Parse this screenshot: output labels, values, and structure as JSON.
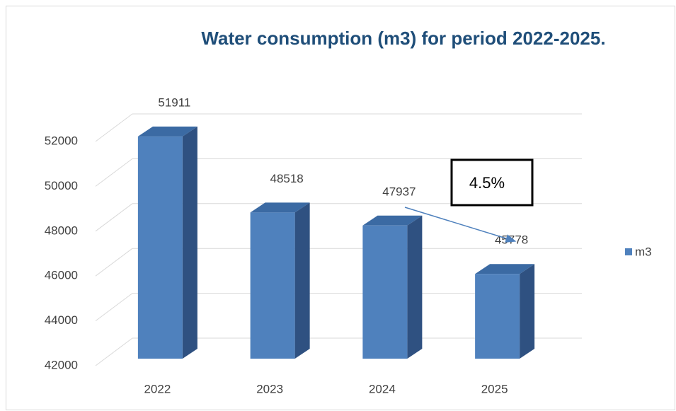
{
  "chart_data": {
    "type": "bar",
    "title": "Water consumption (m3) for period 2022-2025.",
    "categories": [
      "2022",
      "2023",
      "2024",
      "2025"
    ],
    "series": [
      {
        "name": "m3",
        "color": "#4f81bd",
        "values": [
          51911,
          48518,
          47937,
          45778
        ]
      }
    ],
    "ylim": [
      42000,
      52000
    ],
    "yticks": [
      42000,
      44000,
      46000,
      48000,
      50000,
      52000
    ],
    "grid": true,
    "legend": "right",
    "annotations": [
      "4.5%"
    ]
  }
}
